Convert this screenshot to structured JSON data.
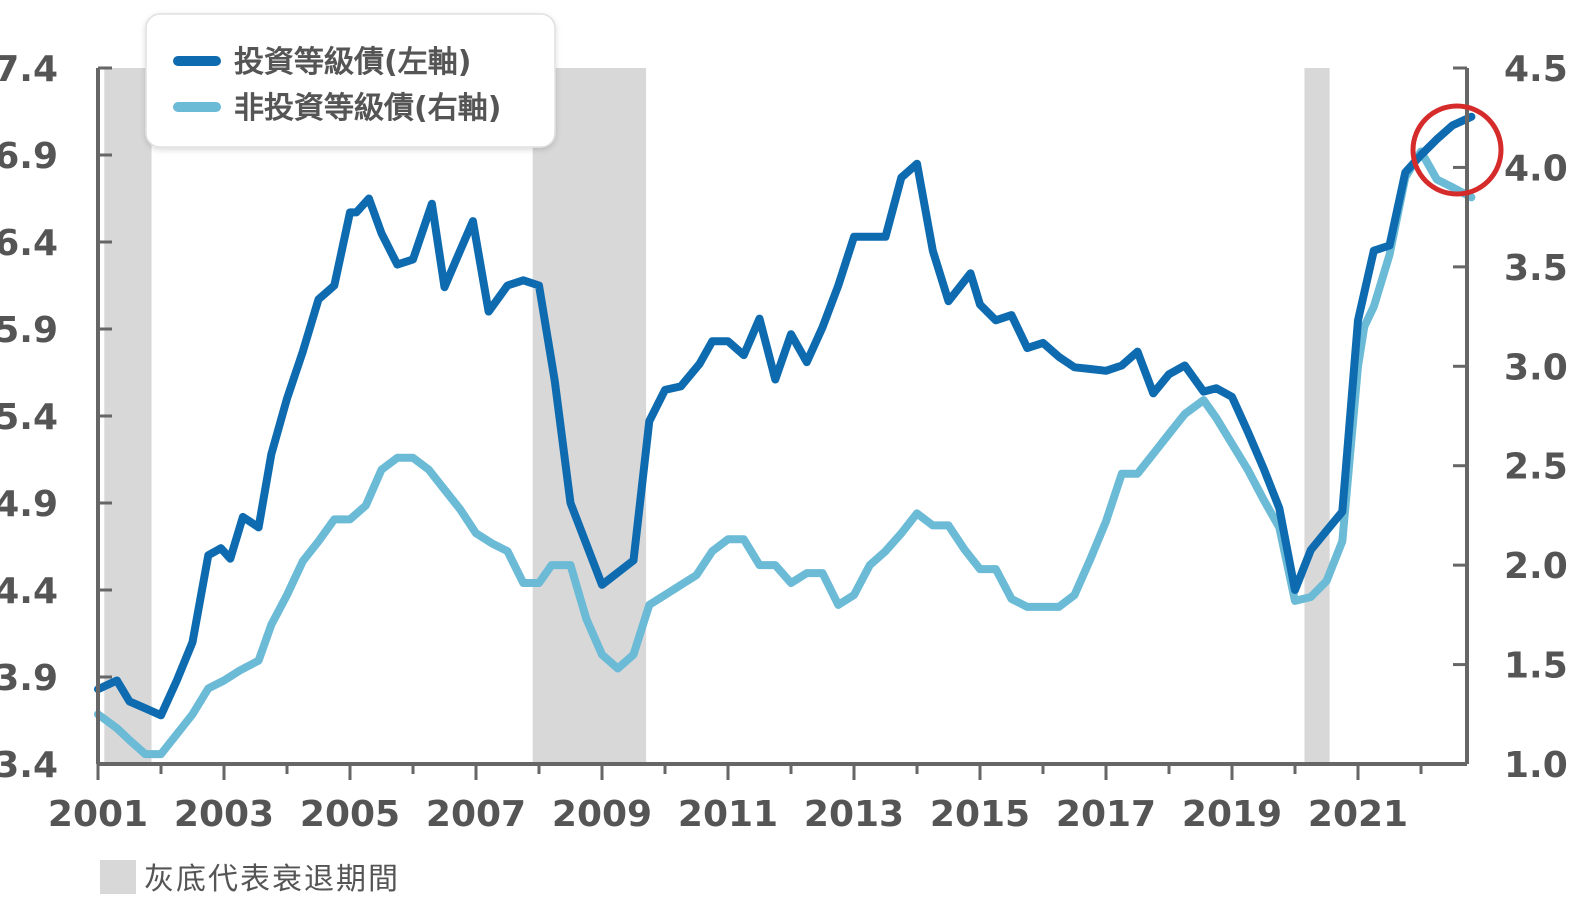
{
  "chart_data": {
    "type": "line",
    "x_axis": {
      "range": [
        2001,
        2022.8
      ],
      "ticks": [
        2001,
        2003,
        2005,
        2007,
        2009,
        2011,
        2013,
        2015,
        2017,
        2019,
        2021
      ],
      "tick_labels": [
        "2001",
        "2003",
        "2005",
        "2007",
        "2009",
        "2011",
        "2013",
        "2015",
        "2017",
        "2019",
        "2021"
      ]
    },
    "y_left": {
      "range": [
        3.4,
        7.4
      ],
      "ticks": [
        3.4,
        3.9,
        4.4,
        4.9,
        5.4,
        5.9,
        6.4,
        6.9,
        7.4
      ],
      "tick_labels": [
        "3.4",
        "3.9",
        "4.4",
        "4.9",
        "5.4",
        "5.9",
        "6.4",
        "6.9",
        "7.4"
      ]
    },
    "y_right": {
      "range": [
        1.0,
        4.5
      ],
      "ticks": [
        1.0,
        1.5,
        2.0,
        2.5,
        3.0,
        3.5,
        4.0,
        4.5
      ],
      "tick_labels": [
        "1.0",
        "1.5",
        "2.0",
        "2.5",
        "3.0",
        "3.5",
        "4.0",
        "4.5"
      ]
    },
    "recessions": [
      [
        2001.1,
        2001.85
      ],
      [
        2007.9,
        2009.7
      ],
      [
        2020.15,
        2020.55
      ]
    ],
    "legend_position": "top-left",
    "grid": false,
    "series": [
      {
        "name": "投資等級債(左軸)",
        "axis": "left",
        "color": "#0e6bb0",
        "x": [
          2001.0,
          2001.3,
          2001.5,
          2001.75,
          2002.0,
          2002.25,
          2002.5,
          2002.75,
          2002.95,
          2003.1,
          2003.3,
          2003.55,
          2003.75,
          2004.0,
          2004.25,
          2004.5,
          2004.75,
          2005.0,
          2005.1,
          2005.3,
          2005.5,
          2005.75,
          2006.0,
          2006.3,
          2006.5,
          2006.7,
          2006.95,
          2007.2,
          2007.5,
          2007.75,
          2008.0,
          2008.25,
          2008.5,
          2009.0,
          2009.5,
          2009.75,
          2010.0,
          2010.25,
          2010.55,
          2010.75,
          2011.0,
          2011.25,
          2011.5,
          2011.75,
          2012.0,
          2012.25,
          2012.5,
          2012.75,
          2013.0,
          2013.25,
          2013.5,
          2013.75,
          2014.0,
          2014.25,
          2014.5,
          2014.85,
          2015.0,
          2015.25,
          2015.5,
          2015.75,
          2016.0,
          2016.25,
          2016.5,
          2016.75,
          2017.0,
          2017.25,
          2017.5,
          2017.75,
          2018.0,
          2018.25,
          2018.55,
          2018.75,
          2019.0,
          2019.25,
          2019.5,
          2019.75,
          2020.0,
          2020.25,
          2020.5,
          2020.75,
          2021.0,
          2021.25,
          2021.5,
          2021.75,
          2022.0,
          2022.25,
          2022.5,
          2022.8
        ],
        "values": [
          3.83,
          3.88,
          3.76,
          3.72,
          3.68,
          3.88,
          4.1,
          4.6,
          4.64,
          4.58,
          4.82,
          4.76,
          5.18,
          5.5,
          5.77,
          6.07,
          6.15,
          6.57,
          6.57,
          6.65,
          6.45,
          6.27,
          6.3,
          6.62,
          6.14,
          6.31,
          6.52,
          6.0,
          6.15,
          6.18,
          6.15,
          5.6,
          4.9,
          4.43,
          4.57,
          5.37,
          5.55,
          5.57,
          5.7,
          5.83,
          5.83,
          5.75,
          5.96,
          5.61,
          5.87,
          5.71,
          5.91,
          6.15,
          6.43,
          6.43,
          6.43,
          6.77,
          6.85,
          6.35,
          6.06,
          6.22,
          6.04,
          5.95,
          5.98,
          5.79,
          5.82,
          5.74,
          5.68,
          5.67,
          5.66,
          5.69,
          5.77,
          5.53,
          5.64,
          5.69,
          5.54,
          5.56,
          5.51,
          5.31,
          5.1,
          4.87,
          4.4,
          4.63,
          4.74,
          4.85,
          5.95,
          6.35,
          6.38,
          6.8,
          6.9,
          6.99,
          7.07,
          7.12
        ]
      },
      {
        "name": "非投資等級債(右軸)",
        "axis": "right",
        "color": "#6bbad6",
        "x": [
          2001.0,
          2001.3,
          2001.5,
          2001.75,
          2002.0,
          2002.25,
          2002.5,
          2002.75,
          2003.0,
          2003.25,
          2003.55,
          2003.75,
          2004.0,
          2004.25,
          2004.5,
          2004.75,
          2005.0,
          2005.25,
          2005.5,
          2005.75,
          2006.0,
          2006.25,
          2006.5,
          2006.75,
          2007.0,
          2007.25,
          2007.5,
          2007.75,
          2008.0,
          2008.2,
          2008.5,
          2008.75,
          2009.0,
          2009.25,
          2009.5,
          2009.75,
          2010.0,
          2010.25,
          2010.5,
          2010.75,
          2011.0,
          2011.25,
          2011.5,
          2011.75,
          2012.0,
          2012.25,
          2012.5,
          2012.75,
          2013.0,
          2013.25,
          2013.5,
          2013.75,
          2014.0,
          2014.25,
          2014.5,
          2014.75,
          2015.0,
          2015.25,
          2015.5,
          2015.75,
          2016.0,
          2016.25,
          2016.5,
          2016.75,
          2017.0,
          2017.25,
          2017.5,
          2017.75,
          2018.0,
          2018.25,
          2018.55,
          2018.75,
          2019.0,
          2019.25,
          2019.5,
          2019.75,
          2020.0,
          2020.25,
          2020.5,
          2020.75,
          2021.0,
          2021.1,
          2021.25,
          2021.5,
          2021.75,
          2022.0,
          2022.25,
          2022.5,
          2022.8
        ],
        "values": [
          1.25,
          1.18,
          1.12,
          1.05,
          1.05,
          1.15,
          1.25,
          1.38,
          1.42,
          1.47,
          1.52,
          1.7,
          1.85,
          2.02,
          2.12,
          2.23,
          2.23,
          2.3,
          2.48,
          2.54,
          2.54,
          2.48,
          2.38,
          2.28,
          2.16,
          2.11,
          2.07,
          1.91,
          1.91,
          2.0,
          2.0,
          1.73,
          1.55,
          1.48,
          1.55,
          1.8,
          1.85,
          1.9,
          1.95,
          2.07,
          2.13,
          2.13,
          2.0,
          2.0,
          1.91,
          1.96,
          1.96,
          1.8,
          1.85,
          2.0,
          2.07,
          2.16,
          2.26,
          2.2,
          2.2,
          2.08,
          1.98,
          1.98,
          1.83,
          1.79,
          1.79,
          1.79,
          1.85,
          2.03,
          2.22,
          2.46,
          2.46,
          2.56,
          2.66,
          2.76,
          2.83,
          2.74,
          2.61,
          2.48,
          2.33,
          2.19,
          1.82,
          1.84,
          1.92,
          2.12,
          3.0,
          3.2,
          3.3,
          3.56,
          3.95,
          4.08,
          3.94,
          3.9,
          3.85
        ]
      }
    ]
  },
  "legend": {
    "items": [
      {
        "label": "投資等級債(左軸)",
        "color": "#0e6bb0"
      },
      {
        "label": "非投資等級債(右軸)",
        "color": "#6bbad6"
      }
    ]
  },
  "note": {
    "label": "灰底代表衰退期間",
    "swatch_color": "#d8d8d8"
  },
  "highlight": {
    "color": "#d62b2b"
  },
  "colors": {
    "axis": "#666666",
    "text": "#555555",
    "recession": "#d8d8d8"
  }
}
